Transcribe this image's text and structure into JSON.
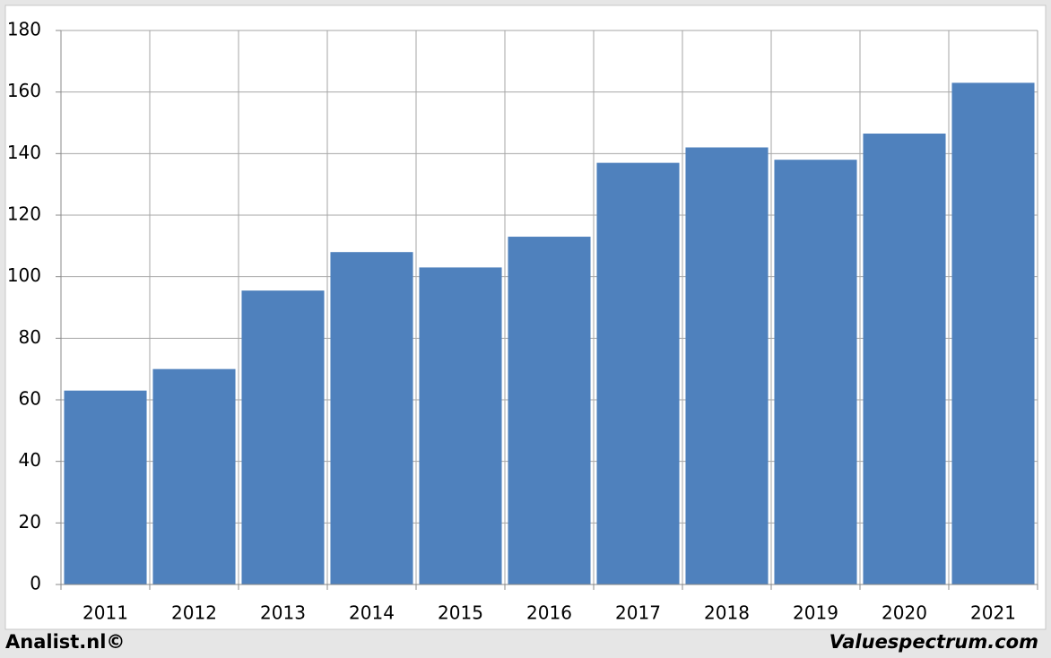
{
  "chart_data": {
    "type": "bar",
    "categories": [
      "2011",
      "2012",
      "2013",
      "2014",
      "2015",
      "2016",
      "2017",
      "2018",
      "2019",
      "2020",
      "2021"
    ],
    "values": [
      63,
      70,
      95.5,
      108,
      103,
      113,
      137,
      142,
      138,
      146.5,
      163
    ],
    "color": "#4f81bd",
    "ylim": [
      0,
      180
    ],
    "yticks": [
      0,
      20,
      40,
      60,
      80,
      100,
      120,
      140,
      160,
      180
    ],
    "grid": true,
    "source_left": "Analist.nl©",
    "source_right": "Valuespectrum.com"
  }
}
